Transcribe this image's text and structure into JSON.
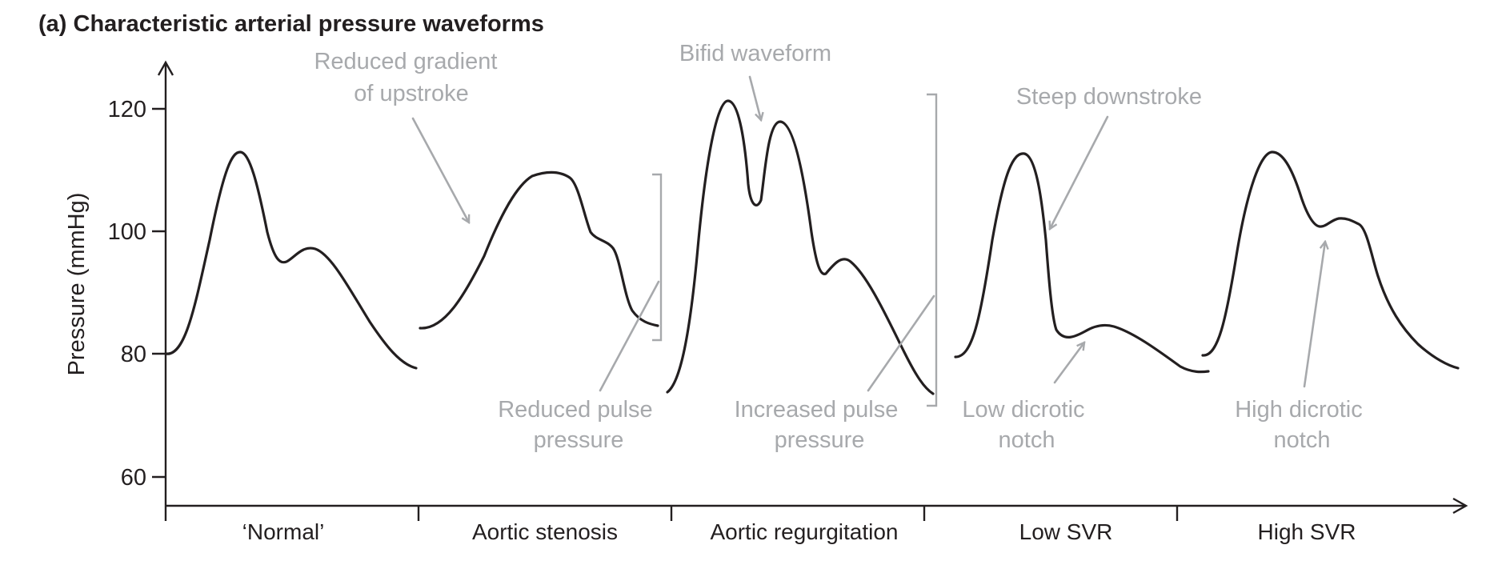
{
  "title": "(a) Characteristic arterial pressure waveforms",
  "y_axis": {
    "label": "Pressure (mmHg)",
    "ticks": [
      "120",
      "100",
      "80",
      "60"
    ]
  },
  "categories": [
    "‘Normal’",
    "Aortic stenosis",
    "Aortic regurgitation",
    "Low SVR",
    "High SVR"
  ],
  "annotations": {
    "reduced_gradient": [
      "Reduced gradient",
      "of upstroke"
    ],
    "reduced_pulse_pressure": [
      "Reduced pulse",
      "pressure"
    ],
    "bifid": [
      "Bifid waveform"
    ],
    "increased_pulse_pressure": [
      "Increased pulse",
      "pressure"
    ],
    "steep_downstroke": [
      "Steep downstroke"
    ],
    "low_dicrotic": [
      "Low dicrotic",
      "notch"
    ],
    "high_dicrotic": [
      "High dicrotic",
      "notch"
    ]
  },
  "colors": {
    "ink": "#231f20",
    "annotation": "#a7a9ac"
  }
}
